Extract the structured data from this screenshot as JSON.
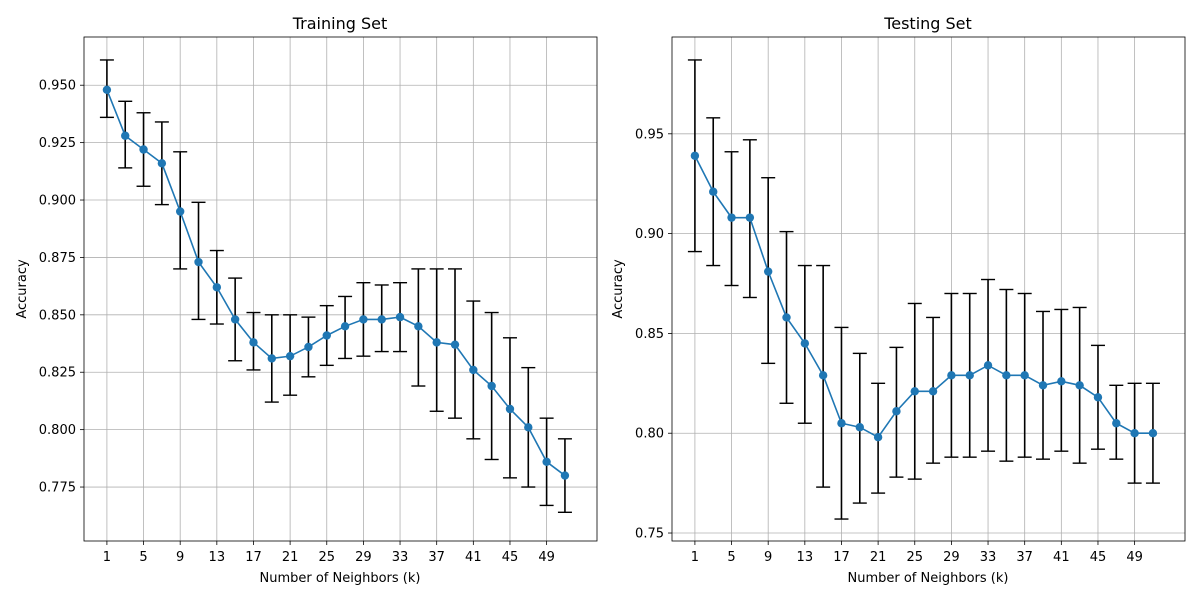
{
  "chart_data": [
    {
      "type": "line",
      "title": "Training Set",
      "xlabel": "Number of Neighbors (k)",
      "ylabel": "Accuracy",
      "xlim": [
        -1.5,
        54.5
      ],
      "ylim": [
        0.7515,
        0.971
      ],
      "xticks": [
        1,
        5,
        9,
        13,
        17,
        21,
        25,
        29,
        33,
        37,
        41,
        45,
        49
      ],
      "yticks": [
        0.775,
        0.8,
        0.825,
        0.85,
        0.875,
        0.9,
        0.925,
        0.95
      ],
      "ytick_labels": [
        "0.775",
        "0.800",
        "0.825",
        "0.850",
        "0.875",
        "0.900",
        "0.925",
        "0.950"
      ],
      "grid": true,
      "color": "#1f77b4",
      "x": [
        1,
        3,
        5,
        7,
        9,
        11,
        13,
        15,
        17,
        19,
        21,
        23,
        25,
        27,
        29,
        31,
        33,
        35,
        37,
        39,
        41,
        43,
        45,
        47,
        49,
        51
      ],
      "y": [
        0.948,
        0.928,
        0.922,
        0.916,
        0.895,
        0.873,
        0.862,
        0.848,
        0.838,
        0.831,
        0.832,
        0.836,
        0.841,
        0.845,
        0.848,
        0.848,
        0.849,
        0.845,
        0.838,
        0.837,
        0.826,
        0.819,
        0.809,
        0.801,
        0.786,
        0.78
      ],
      "err_low": [
        0.936,
        0.914,
        0.906,
        0.898,
        0.87,
        0.848,
        0.846,
        0.83,
        0.826,
        0.812,
        0.815,
        0.823,
        0.828,
        0.831,
        0.832,
        0.834,
        0.834,
        0.819,
        0.808,
        0.805,
        0.796,
        0.787,
        0.779,
        0.775,
        0.767,
        0.764
      ],
      "err_high": [
        0.961,
        0.943,
        0.938,
        0.934,
        0.921,
        0.899,
        0.878,
        0.866,
        0.851,
        0.85,
        0.85,
        0.849,
        0.854,
        0.858,
        0.864,
        0.863,
        0.864,
        0.87,
        0.87,
        0.87,
        0.856,
        0.851,
        0.84,
        0.827,
        0.805,
        0.796
      ]
    },
    {
      "type": "line",
      "title": "Testing Set",
      "xlabel": "Number of Neighbors (k)",
      "ylabel": "Accuracy",
      "xlim": [
        -1.5,
        54.5
      ],
      "ylim": [
        0.746,
        0.9985
      ],
      "xticks": [
        1,
        5,
        9,
        13,
        17,
        21,
        25,
        29,
        33,
        37,
        41,
        45,
        49
      ],
      "yticks": [
        0.75,
        0.8,
        0.85,
        0.9,
        0.95
      ],
      "ytick_labels": [
        "0.75",
        "0.80",
        "0.85",
        "0.90",
        "0.95"
      ],
      "grid": true,
      "color": "#1f77b4",
      "x": [
        1,
        3,
        5,
        7,
        9,
        11,
        13,
        15,
        17,
        19,
        21,
        23,
        25,
        27,
        29,
        31,
        33,
        35,
        37,
        39,
        41,
        43,
        45,
        47,
        49,
        51
      ],
      "y": [
        0.939,
        0.921,
        0.908,
        0.908,
        0.881,
        0.858,
        0.845,
        0.829,
        0.805,
        0.803,
        0.798,
        0.811,
        0.821,
        0.821,
        0.829,
        0.829,
        0.834,
        0.829,
        0.829,
        0.824,
        0.826,
        0.824,
        0.818,
        0.805,
        0.8,
        0.8
      ],
      "err_low": [
        0.891,
        0.884,
        0.874,
        0.868,
        0.835,
        0.815,
        0.805,
        0.773,
        0.757,
        0.765,
        0.77,
        0.778,
        0.777,
        0.785,
        0.788,
        0.788,
        0.791,
        0.786,
        0.788,
        0.787,
        0.791,
        0.785,
        0.792,
        0.787,
        0.775,
        0.775
      ],
      "err_high": [
        0.987,
        0.958,
        0.941,
        0.947,
        0.928,
        0.901,
        0.884,
        0.884,
        0.853,
        0.84,
        0.825,
        0.843,
        0.865,
        0.858,
        0.87,
        0.87,
        0.877,
        0.872,
        0.87,
        0.861,
        0.862,
        0.863,
        0.844,
        0.824,
        0.825,
        0.825
      ]
    }
  ]
}
